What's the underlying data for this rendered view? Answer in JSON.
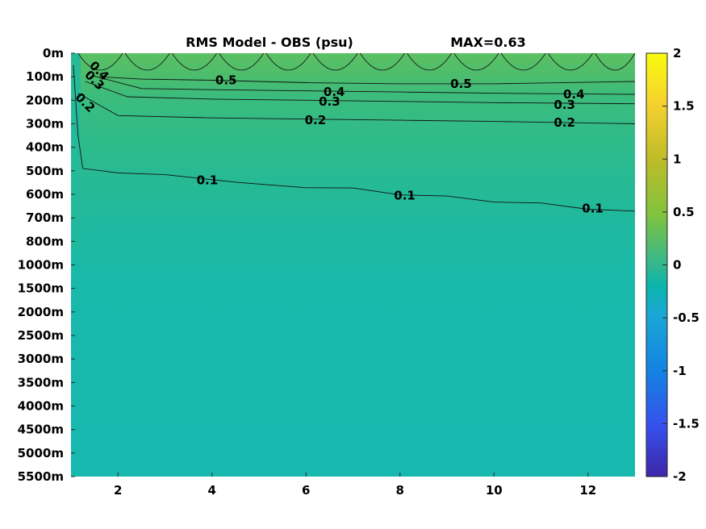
{
  "chart_data": {
    "type": "heatmap",
    "title": "RMS Model - OBS (psu)",
    "max_label": "MAX=0.63",
    "x_ticks": [
      2,
      4,
      6,
      8,
      10,
      12
    ],
    "xlim": [
      1,
      13
    ],
    "y_levels": [
      "0m",
      "100m",
      "200m",
      "300m",
      "400m",
      "500m",
      "600m",
      "700m",
      "800m",
      "1000m",
      "1500m",
      "2000m",
      "2500m",
      "3000m",
      "3500m",
      "4000m",
      "4500m",
      "5000m",
      "5500m"
    ],
    "colorbar": {
      "min": -2,
      "max": 2,
      "ticks": [
        "2",
        "1.5",
        "1",
        "0.5",
        "0",
        "-0.5",
        "-1",
        "-1.5",
        "-2"
      ],
      "colormap": "parula"
    },
    "contour_labels": [
      {
        "value": "0.5",
        "x": 4.3,
        "y": 1.15
      },
      {
        "value": "0.5",
        "x": 9.3,
        "y": 1.3
      },
      {
        "value": "0.4",
        "x": 1.6,
        "y": 0.75,
        "rotate": 45
      },
      {
        "value": "0.4",
        "x": 6.6,
        "y": 1.65
      },
      {
        "value": "0.4",
        "x": 11.7,
        "y": 1.75
      },
      {
        "value": "0.3",
        "x": 1.5,
        "y": 1.15,
        "rotate": 45
      },
      {
        "value": "0.3",
        "x": 6.5,
        "y": 2.05
      },
      {
        "value": "0.3",
        "x": 11.5,
        "y": 2.2
      },
      {
        "value": "0.2",
        "x": 1.3,
        "y": 2.1,
        "rotate": 45
      },
      {
        "value": "0.2",
        "x": 6.2,
        "y": 2.85
      },
      {
        "value": "0.2",
        "x": 11.5,
        "y": 2.95
      },
      {
        "value": "0.1",
        "x": 3.9,
        "y": 5.4
      },
      {
        "value": "0.1",
        "x": 8.1,
        "y": 6.05
      },
      {
        "value": "0.1",
        "x": 12.1,
        "y": 6.6
      }
    ],
    "contours": [
      {
        "level": 0.5,
        "points": [
          [
            1.6,
            1.0
          ],
          [
            2.5,
            1.1
          ],
          [
            4.0,
            1.15
          ],
          [
            6.0,
            1.25
          ],
          [
            8.0,
            1.3
          ],
          [
            10.0,
            1.3
          ],
          [
            13,
            1.2
          ]
        ]
      },
      {
        "level": 0.4,
        "points": [
          [
            1.45,
            0.95
          ],
          [
            2.5,
            1.5
          ],
          [
            4.0,
            1.55
          ],
          [
            6.0,
            1.6
          ],
          [
            8.0,
            1.65
          ],
          [
            10.0,
            1.7
          ],
          [
            13,
            1.75
          ]
        ]
      },
      {
        "level": 0.3,
        "points": [
          [
            1.3,
            1.2
          ],
          [
            2.2,
            1.85
          ],
          [
            4.0,
            1.95
          ],
          [
            6.0,
            2.0
          ],
          [
            8.0,
            2.05
          ],
          [
            10.0,
            2.1
          ],
          [
            13,
            2.15
          ]
        ]
      },
      {
        "level": 0.2,
        "points": [
          [
            1.15,
            1.7
          ],
          [
            2.0,
            2.65
          ],
          [
            4.0,
            2.75
          ],
          [
            6.0,
            2.8
          ],
          [
            8.0,
            2.85
          ],
          [
            10.0,
            2.9
          ],
          [
            13,
            3.0
          ]
        ]
      },
      {
        "level": 0.1,
        "points": [
          [
            1.05,
            0.5
          ],
          [
            1.1,
            2.0
          ],
          [
            1.15,
            3.5
          ],
          [
            1.25,
            4.9
          ],
          [
            2.0,
            5.1
          ],
          [
            3.0,
            5.15
          ],
          [
            4.5,
            5.5
          ],
          [
            6.0,
            5.7
          ],
          [
            7.0,
            5.75
          ],
          [
            8.0,
            6.0
          ],
          [
            9.0,
            6.1
          ],
          [
            10.0,
            6.3
          ],
          [
            11.0,
            6.4
          ],
          [
            12.0,
            6.6
          ],
          [
            13,
            6.75
          ]
        ]
      }
    ]
  }
}
